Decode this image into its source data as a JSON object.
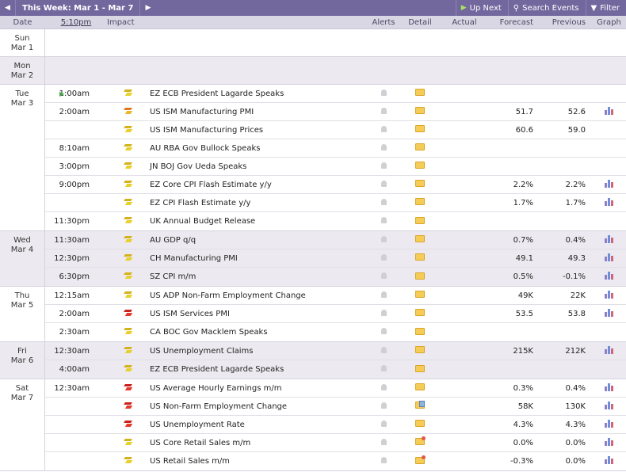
{
  "toolbar": {
    "prev_icon": "chevron-left",
    "next_icon": "chevron-right",
    "week_label": "This Week: Mar 1 - Mar 7",
    "up_next_label": "Up Next",
    "search_label": "Search Events",
    "filter_label": "Filter"
  },
  "columns": {
    "date": "Date",
    "time": "5:10pm",
    "impact": "Impact",
    "alerts": "Alerts",
    "detail": "Detail",
    "actual": "Actual",
    "forecast": "Forecast",
    "previous": "Previous",
    "graph": "Graph"
  },
  "colors": {
    "toolbar_bg": "#73689e",
    "header_bg": "#d9d7e3",
    "shaded_day_bg": "#eceaf0",
    "impact_low": "#e8d12c",
    "impact_medium": "#e2761c",
    "impact_high": "#c9211c"
  },
  "days": [
    {
      "dow": "Sun",
      "date": "Mar 1",
      "events": []
    },
    {
      "dow": "Mon",
      "date": "Mar 2",
      "events": []
    },
    {
      "dow": "Tue",
      "date": "Mar 3",
      "events": [
        {
          "time": "1:00am",
          "impact": "low",
          "event": "EZ ECB President Lagarde Speaks",
          "forecast": "",
          "previous": "",
          "detail": "folder",
          "graph": false,
          "playing": true
        },
        {
          "time": "2:00am",
          "impact": "medium",
          "event": "US ISM Manufacturing PMI",
          "forecast": "51.7",
          "previous": "52.6",
          "detail": "folder",
          "graph": true
        },
        {
          "time": "",
          "impact": "low",
          "event": "US ISM Manufacturing Prices",
          "forecast": "60.6",
          "previous": "59.0",
          "detail": "folder",
          "graph": false
        },
        {
          "time": "8:10am",
          "impact": "low",
          "event": "AU RBA Gov Bullock Speaks",
          "forecast": "",
          "previous": "",
          "detail": "folder",
          "graph": false
        },
        {
          "time": "3:00pm",
          "impact": "low",
          "event": "JN BOJ Gov Ueda Speaks",
          "forecast": "",
          "previous": "",
          "detail": "folder",
          "graph": false
        },
        {
          "time": "9:00pm",
          "impact": "low",
          "event": "EZ Core CPI Flash Estimate y/y",
          "forecast": "2.2%",
          "previous": "2.2%",
          "detail": "folder",
          "graph": true
        },
        {
          "time": "",
          "impact": "low",
          "event": "EZ CPI Flash Estimate y/y",
          "forecast": "1.7%",
          "previous": "1.7%",
          "detail": "folder",
          "graph": true
        },
        {
          "time": "11:30pm",
          "impact": "low",
          "event": "UK Annual Budget Release",
          "forecast": "",
          "previous": "",
          "detail": "folder",
          "graph": false
        }
      ]
    },
    {
      "dow": "Wed",
      "date": "Mar 4",
      "events": [
        {
          "time": "11:30am",
          "impact": "low",
          "event": "AU GDP q/q",
          "forecast": "0.7%",
          "previous": "0.4%",
          "detail": "folder",
          "graph": true
        },
        {
          "time": "12:30pm",
          "impact": "low",
          "event": "CH Manufacturing PMI",
          "forecast": "49.1",
          "previous": "49.3",
          "detail": "folder",
          "graph": true
        },
        {
          "time": "6:30pm",
          "impact": "low",
          "event": "SZ CPI m/m",
          "forecast": "0.5%",
          "previous": "-0.1%",
          "detail": "folder",
          "graph": true
        }
      ]
    },
    {
      "dow": "Thu",
      "date": "Mar 5",
      "events": [
        {
          "time": "12:15am",
          "impact": "low",
          "event": "US ADP Non-Farm Employment Change",
          "forecast": "49K",
          "previous": "22K",
          "detail": "folder",
          "graph": true
        },
        {
          "time": "2:00am",
          "impact": "high",
          "event": "US ISM Services PMI",
          "forecast": "53.5",
          "previous": "53.8",
          "detail": "folder",
          "graph": true
        },
        {
          "time": "2:30am",
          "impact": "low",
          "event": "CA BOC Gov Macklem Speaks",
          "forecast": "",
          "previous": "",
          "detail": "folder",
          "graph": false
        }
      ]
    },
    {
      "dow": "Fri",
      "date": "Mar 6",
      "events": [
        {
          "time": "12:30am",
          "impact": "low",
          "event": "US Unemployment Claims",
          "forecast": "215K",
          "previous": "212K",
          "detail": "folder",
          "graph": true
        },
        {
          "time": "4:00am",
          "impact": "low",
          "event": "EZ ECB President Lagarde Speaks",
          "forecast": "",
          "previous": "",
          "detail": "folder",
          "graph": false
        }
      ]
    },
    {
      "dow": "Sat",
      "date": "Mar 7",
      "events": [
        {
          "time": "12:30am",
          "impact": "high",
          "event": "US Average Hourly Earnings m/m",
          "forecast": "0.3%",
          "previous": "0.4%",
          "detail": "folder",
          "graph": true
        },
        {
          "time": "",
          "impact": "high",
          "event": "US Non-Farm Employment Change",
          "forecast": "58K",
          "previous": "130K",
          "detail": "folder-doc",
          "graph": true
        },
        {
          "time": "",
          "impact": "high",
          "event": "US Unemployment Rate",
          "forecast": "4.3%",
          "previous": "4.3%",
          "detail": "folder",
          "graph": true
        },
        {
          "time": "",
          "impact": "low",
          "event": "US Core Retail Sales m/m",
          "forecast": "0.0%",
          "previous": "0.0%",
          "detail": "folder-news",
          "graph": true
        },
        {
          "time": "",
          "impact": "low",
          "event": "US Retail Sales m/m",
          "forecast": "-0.3%",
          "previous": "0.0%",
          "detail": "folder-news",
          "graph": true
        }
      ]
    }
  ]
}
